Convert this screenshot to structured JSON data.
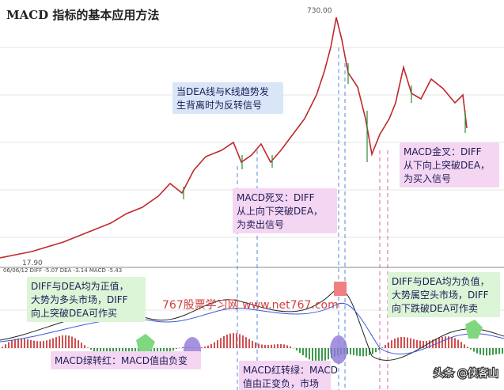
{
  "header": {
    "title": "MACD 指标的基本应用方法"
  },
  "price_labels": {
    "high": "730.00",
    "low": "17.90"
  },
  "indicator_header": "06/06/12  DIFF -5.07  DEA -3.14  MACD -5.43",
  "annotations": [
    {
      "lines": [
        "当DEA线与K线趋势发",
        "生背离时为反转信号"
      ]
    },
    {
      "lines": [
        "MACD死叉：DIFF",
        "从上向下突破DEA，",
        "为卖出信号"
      ]
    },
    {
      "lines": [
        "MACD金叉：DIFF",
        "从下向上突破DEA，",
        "为买入信号"
      ]
    },
    {
      "lines": [
        "DIFF与DEA均为正值，",
        "大势为多头市场，DIFF",
        "向上突破DEA可作买"
      ]
    },
    {
      "lines": [
        "DIFF与DEA均为负值，",
        "大势属空头市场，DIFF",
        "向下跌破DEA可作卖"
      ]
    },
    {
      "lines": [
        "MACD绿转红：MACD值由负变"
      ]
    },
    {
      "lines": [
        "MACD红转绿：MACD",
        "值由正变负，市场"
      ]
    }
  ],
  "watermark": "767股票学习网  www.net767.com",
  "credit": "头条 @侠客山"
}
